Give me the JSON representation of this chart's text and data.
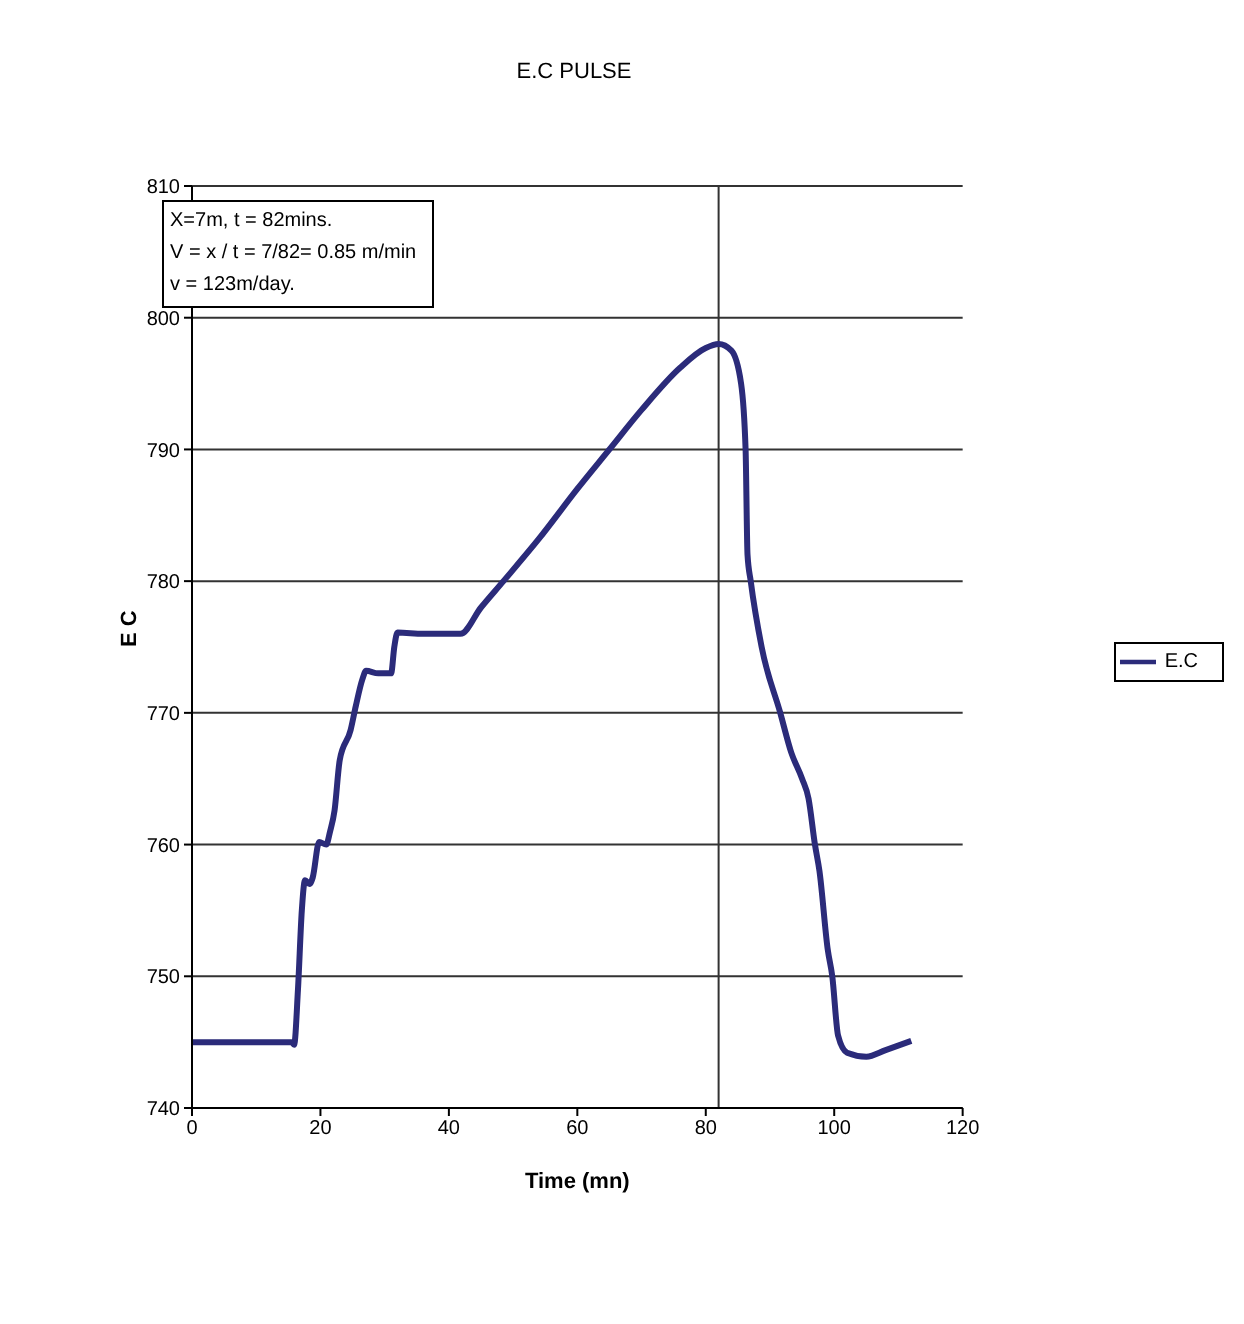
{
  "chart_data": {
    "type": "line",
    "title": "E.C PULSE",
    "xlabel": "Time (mn)",
    "ylabel": "E C",
    "annotations": [
      "X=7m, t = 82mins.",
      "V = x / t = 7/82= 0.85 m/min",
      "v = 123m/day."
    ],
    "series": [
      {
        "name": "E.C",
        "color": "#2b2b7a",
        "x": [
          0,
          10,
          15.5,
          15.9,
          16.5,
          17.1,
          17.6,
          18.3,
          18.8,
          19.8,
          20.9,
          21.5,
          22.2,
          23,
          24.7,
          25.5,
          26.5,
          27.1,
          29,
          31,
          31.5,
          32,
          36,
          41.8,
          45,
          48.5,
          54,
          60,
          65,
          70,
          76,
          80,
          82,
          84,
          85.5,
          86.2,
          86.5,
          87,
          88.7,
          91.6,
          93.3,
          95,
          96,
          97,
          97.7,
          99,
          99.7,
          100.6,
          102,
          105,
          108,
          112
        ],
        "values": [
          745,
          745,
          745,
          744.8,
          749,
          755,
          757.3,
          757,
          757.5,
          760.2,
          760,
          761,
          762.6,
          766.4,
          768.7,
          770.5,
          772.5,
          773.2,
          773,
          773,
          775,
          776.1,
          776,
          776,
          778,
          780,
          783.2,
          787,
          790,
          793,
          796.2,
          797.7,
          798,
          797.5,
          795,
          790,
          782,
          780,
          775,
          770,
          767,
          765,
          763.5,
          760,
          758,
          752,
          750,
          745.5,
          744.2,
          743.9,
          744.4,
          745.1
        ]
      }
    ],
    "xlim": [
      0,
      120
    ],
    "xticks": [
      0,
      20,
      40,
      60,
      80,
      100,
      120
    ],
    "ylim": [
      740,
      810
    ],
    "yticks": [
      740,
      750,
      760,
      770,
      780,
      790,
      800,
      810
    ],
    "grid": "y",
    "legend": "right",
    "marker": "none",
    "line_style": "solid",
    "ref_lines": [
      {
        "axis": "x",
        "value": 82,
        "color": "#333333"
      }
    ]
  }
}
